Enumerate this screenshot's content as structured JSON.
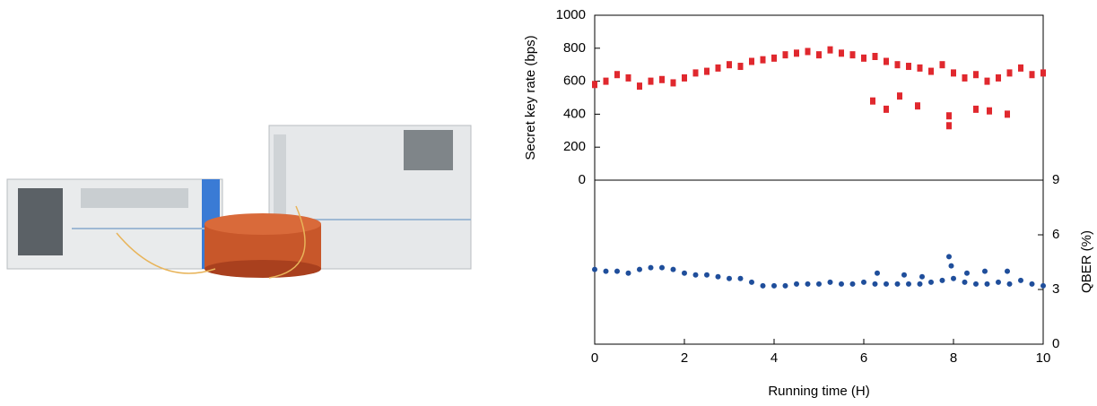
{
  "chart_data": {
    "type": "scatter",
    "xlabel": "Running time (H)",
    "ylabel": "Secret key rate (bps)",
    "y2label": "QBER (%)",
    "xlim": [
      0,
      10
    ],
    "xticks": [
      0,
      2,
      4,
      6,
      8,
      10
    ],
    "ylim": [
      0,
      1000
    ],
    "yticks": [
      0,
      200,
      400,
      600,
      800,
      1000
    ],
    "y2lim": [
      0,
      9
    ],
    "y2ticks": [
      0,
      3,
      6,
      9
    ],
    "series": [
      {
        "color": "#e0282e",
        "x": [
          0,
          0.25,
          0.5,
          0.75,
          1,
          1.25,
          1.5,
          1.75,
          2,
          2.25,
          2.5,
          2.75,
          3,
          3.25,
          3.5,
          3.75,
          4,
          4.25,
          4.5,
          4.75,
          5,
          5.25,
          5.5,
          5.75,
          6,
          6.25,
          6.5,
          6.75,
          7,
          7.25,
          7.5,
          7.75,
          8,
          8.25,
          8.5,
          8.75,
          9,
          9.25,
          9.5,
          9.75,
          10,
          6.2,
          6.5,
          6.8,
          7.2,
          7.9,
          7.9,
          8.5,
          8.8,
          9.2
        ],
        "values": [
          580,
          600,
          640,
          620,
          570,
          600,
          610,
          590,
          620,
          650,
          660,
          680,
          700,
          690,
          720,
          730,
          740,
          760,
          770,
          780,
          760,
          790,
          770,
          760,
          740,
          750,
          720,
          700,
          690,
          680,
          660,
          700,
          650,
          620,
          640,
          600,
          620,
          650,
          680,
          640,
          650,
          480,
          430,
          510,
          450,
          390,
          330,
          430,
          420,
          400
        ]
      },
      {
        "color": "#1f4e9b",
        "axis": "y2",
        "x": [
          0,
          0.25,
          0.5,
          0.75,
          1,
          1.25,
          1.5,
          1.75,
          2,
          2.25,
          2.5,
          2.75,
          3,
          3.25,
          3.5,
          3.75,
          4,
          4.25,
          4.5,
          4.75,
          5,
          5.25,
          5.5,
          5.75,
          6,
          6.25,
          6.5,
          6.75,
          7,
          7.25,
          7.5,
          7.75,
          8,
          8.25,
          8.5,
          8.75,
          9,
          9.25,
          9.5,
          9.75,
          10,
          6.3,
          6.9,
          7.3,
          7.9,
          7.95,
          8.3,
          8.7,
          9.2
        ],
        "values": [
          4.1,
          4.0,
          4.0,
          3.9,
          4.1,
          4.2,
          4.2,
          4.1,
          3.9,
          3.8,
          3.8,
          3.7,
          3.6,
          3.6,
          3.4,
          3.2,
          3.2,
          3.2,
          3.3,
          3.3,
          3.3,
          3.4,
          3.3,
          3.3,
          3.4,
          3.3,
          3.3,
          3.3,
          3.3,
          3.3,
          3.4,
          3.5,
          3.6,
          3.4,
          3.3,
          3.3,
          3.4,
          3.3,
          3.5,
          3.3,
          3.2,
          3.9,
          3.8,
          3.7,
          4.8,
          4.3,
          3.9,
          4.0,
          4.0
        ]
      }
    ]
  }
}
